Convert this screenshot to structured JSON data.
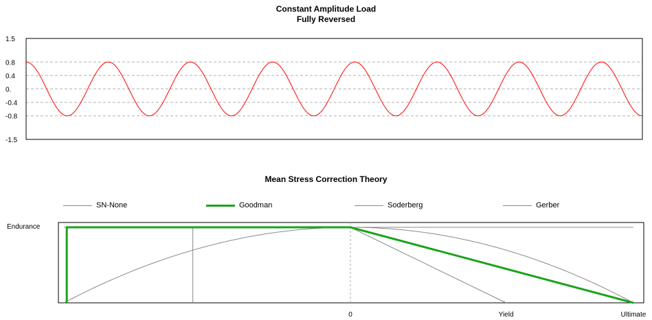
{
  "chart_data": [
    {
      "type": "line",
      "title": "Constant Amplitude Load",
      "subtitle": "Fully Reversed",
      "y_ticks": [
        "1.5",
        "0.8",
        "0.4",
        "0.",
        "-0.4",
        "-0.8",
        "-1.5"
      ],
      "ylim": [
        -1.5,
        1.5
      ],
      "grid": true,
      "series": [
        {
          "color": "#ff0000",
          "amplitude": 1.0,
          "mean": 0.0,
          "cycles": 7.5,
          "start_phase": "peak"
        }
      ]
    },
    {
      "type": "line",
      "title": "Mean Stress Correction Theory",
      "y_label": "Endurance",
      "x_ticks": [
        "0",
        "Yield",
        "Ultimate"
      ],
      "legend_position": "top",
      "legend": [
        {
          "name": "SN-None",
          "color": "#888888",
          "width": 1
        },
        {
          "name": "Goodman",
          "color": "#1aa31a",
          "width": 3
        },
        {
          "name": "Soderberg",
          "color": "#888888",
          "width": 1
        },
        {
          "name": "Gerber",
          "color": "#888888",
          "width": 1
        }
      ],
      "x_domain": [
        -1.0,
        1.0
      ],
      "x_markers": {
        "zero": 0.0,
        "yield": 0.55,
        "ultimate": 1.0
      },
      "series": [
        {
          "name": "SN-None",
          "points": [
            [
              -1.0,
              1.0
            ],
            [
              1.0,
              1.0
            ]
          ]
        },
        {
          "name": "Goodman",
          "points": [
            [
              -0.99,
              0.0
            ],
            [
              -0.99,
              1.0
            ],
            [
              0.0,
              1.0
            ],
            [
              1.0,
              0.0
            ]
          ]
        },
        {
          "name": "Soderberg",
          "points": [
            [
              0.0,
              1.0
            ],
            [
              0.55,
              0.0
            ]
          ]
        },
        {
          "name": "Gerber",
          "points": "1 - x^2 for x in [-1, 1]"
        }
      ],
      "vertical_line_x": -0.55
    }
  ]
}
